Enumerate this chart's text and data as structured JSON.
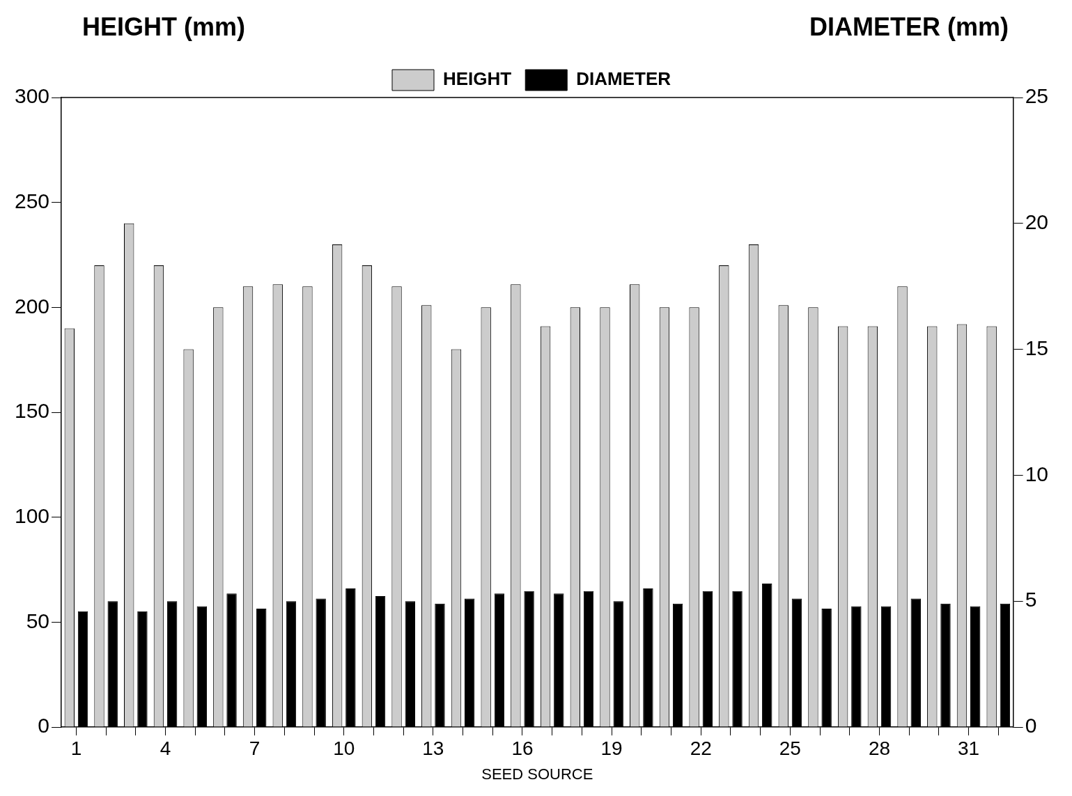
{
  "chart_data": {
    "type": "bar",
    "xlabel": "SEED SOURCE",
    "ylabel": "HEIGHT (mm)",
    "y2label": "DIAMETER (mm)",
    "categories": [
      "1",
      null,
      null,
      "4",
      null,
      null,
      "7",
      null,
      null,
      "10",
      null,
      null,
      "13",
      null,
      null,
      "16",
      null,
      null,
      "19",
      null,
      null,
      "22",
      null,
      null,
      "25",
      null,
      null,
      "28",
      null,
      null,
      "31",
      null
    ],
    "series": [
      {
        "name": "HEIGHT",
        "color": "#cccccc",
        "values": [
          190,
          220,
          240,
          220,
          180,
          200,
          210,
          211,
          210,
          230,
          220,
          210,
          201,
          180,
          200,
          211,
          191,
          200,
          200,
          211,
          200,
          200,
          220,
          230,
          201,
          200,
          191,
          191,
          210,
          191,
          192,
          191
        ]
      },
      {
        "name": "DIAMETER",
        "color": "#000000",
        "axis": "y2",
        "values": [
          4.6,
          5.0,
          4.6,
          5.0,
          4.8,
          5.3,
          4.7,
          5.0,
          5.1,
          5.5,
          5.2,
          5.0,
          4.9,
          5.1,
          5.3,
          5.4,
          5.3,
          5.4,
          5.0,
          5.5,
          4.9,
          5.4,
          5.4,
          5.7,
          5.1,
          4.7,
          4.8,
          4.8,
          5.1,
          4.9,
          4.8,
          4.9
        ]
      }
    ],
    "ylim": [
      0,
      300
    ],
    "yticks": [
      0,
      50,
      100,
      150,
      200,
      250,
      300
    ],
    "y2lim": [
      0,
      25
    ],
    "y2ticks": [
      0,
      5,
      10,
      15,
      20,
      25
    ],
    "grid": false,
    "legend": "top"
  }
}
